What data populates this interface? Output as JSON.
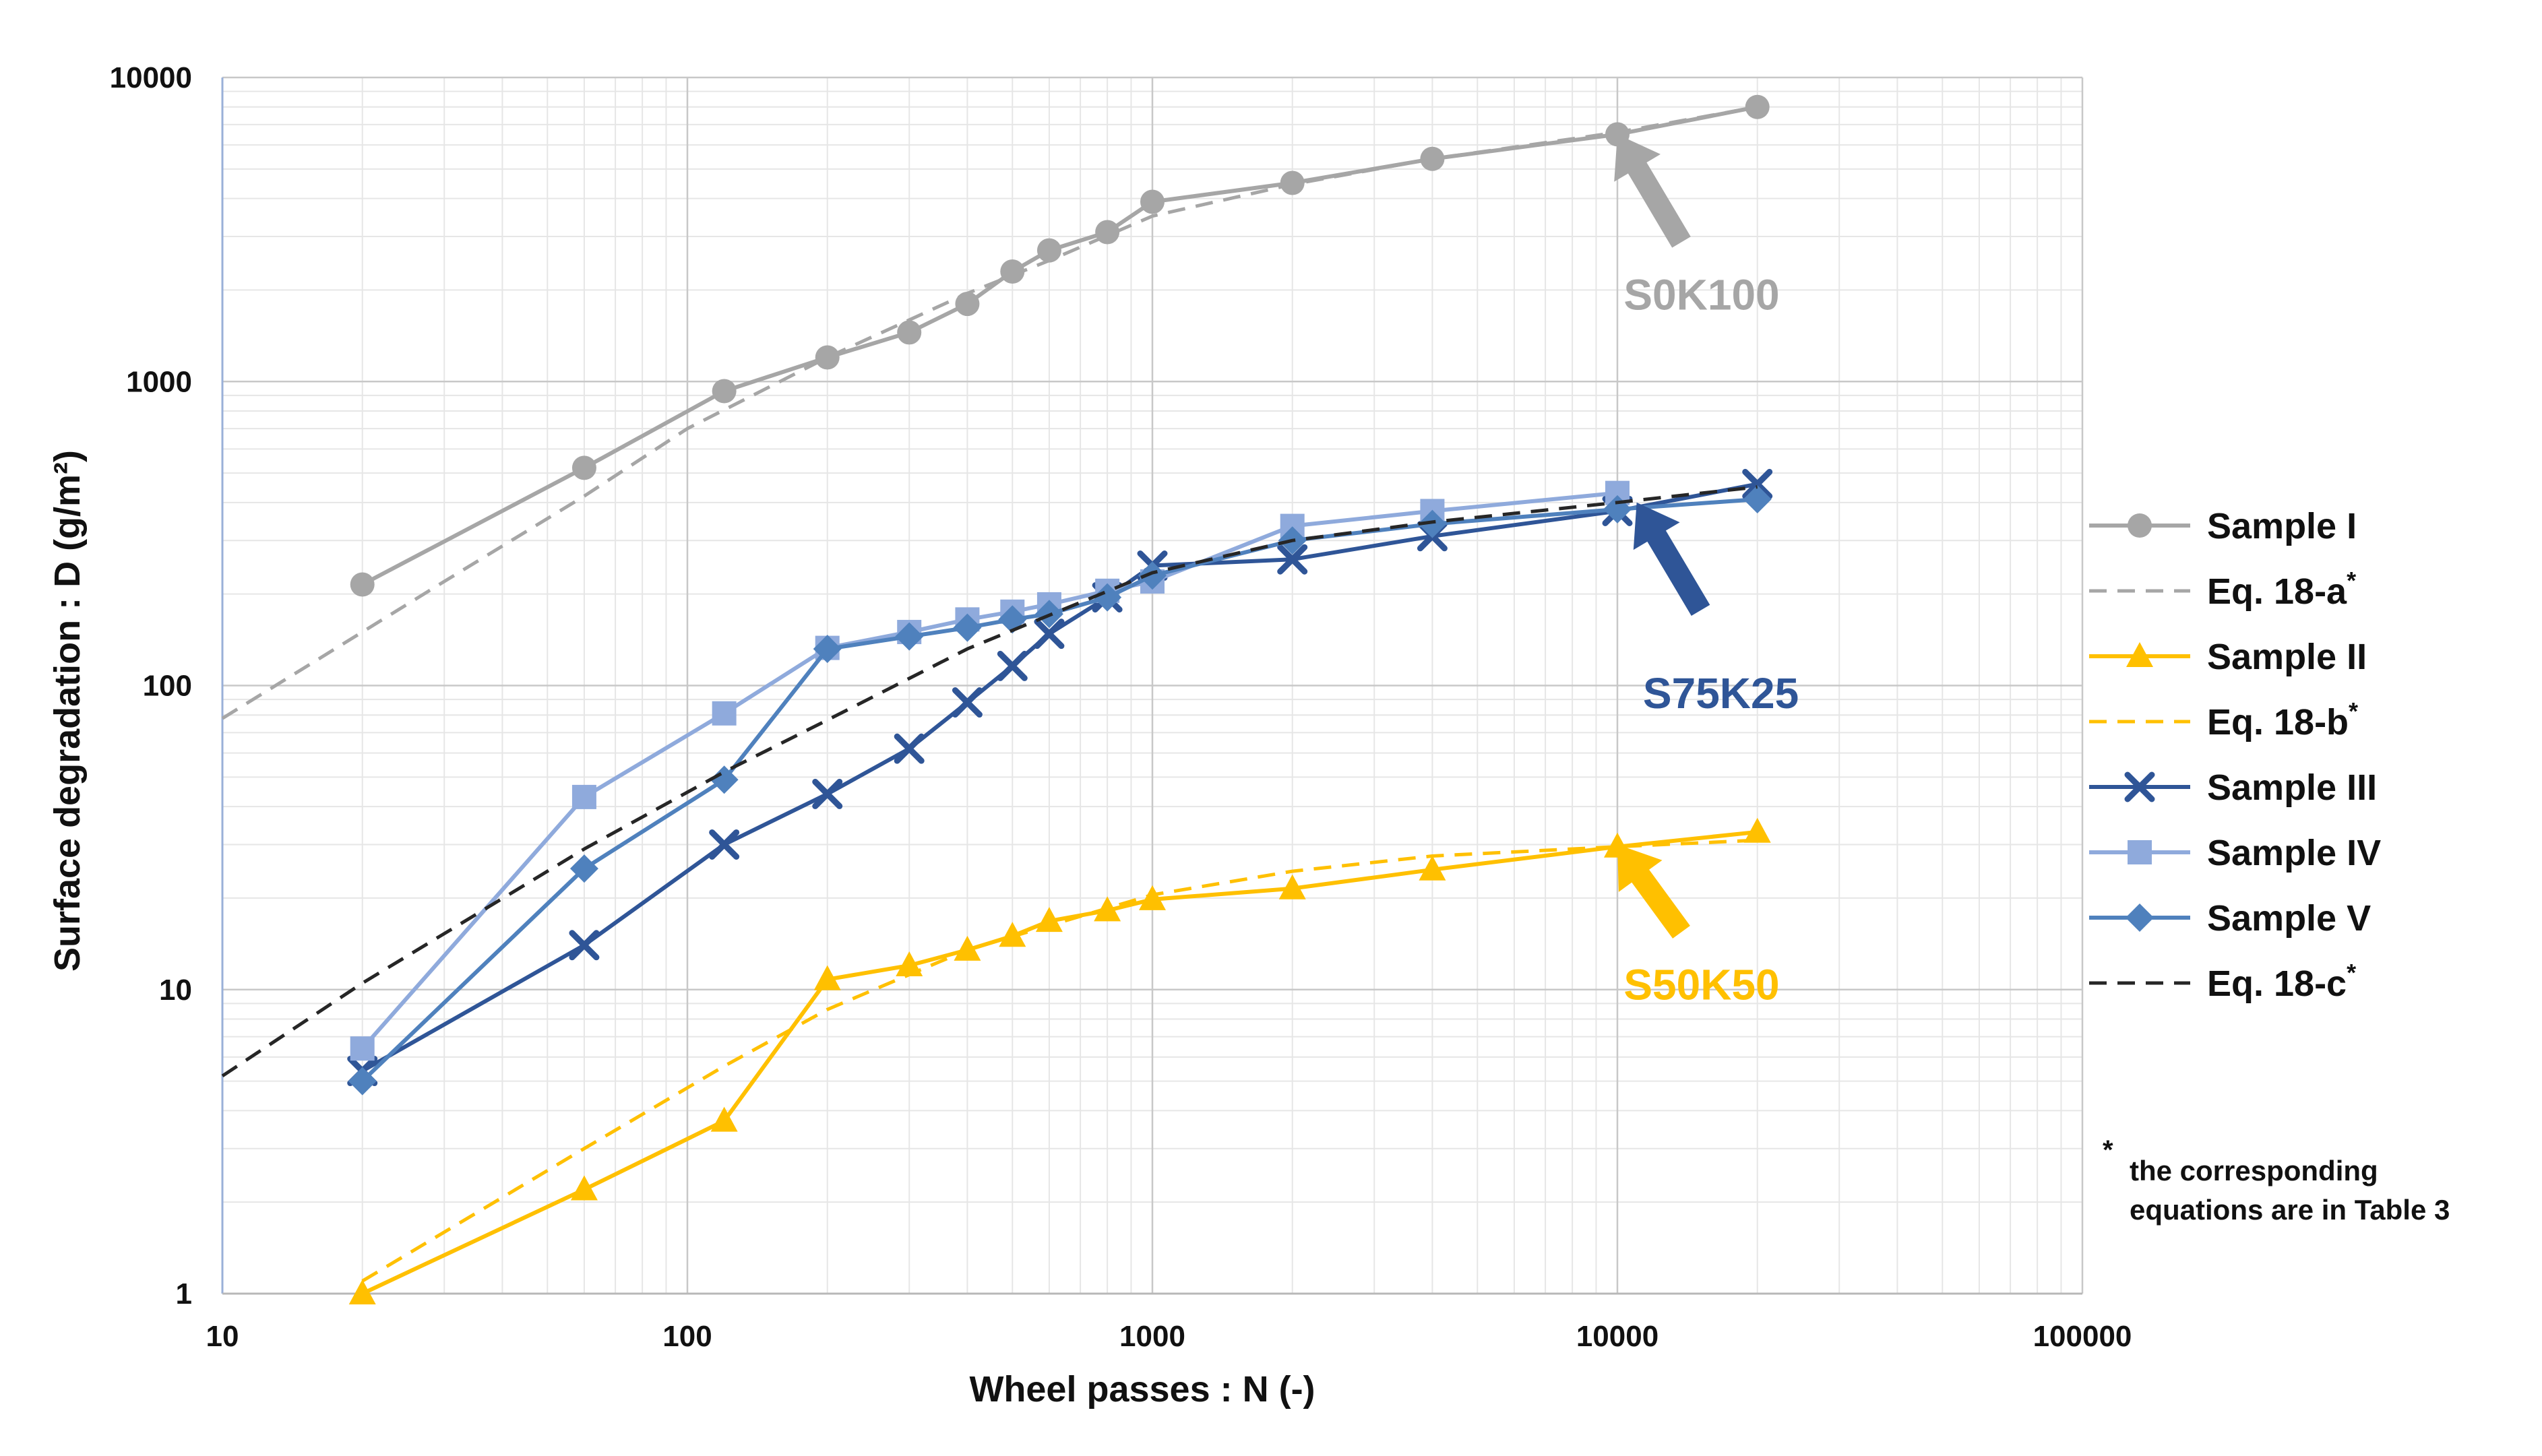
{
  "chart_data": {
    "type": "line",
    "title": "",
    "xlabel": "Wheel passes : N (-)",
    "ylabel": "Surface degradation : D (g/m²)",
    "xscale": "log",
    "yscale": "log",
    "xlim": [
      10,
      100000
    ],
    "ylim": [
      1,
      10000
    ],
    "xticks": [
      "10",
      "100",
      "1000",
      "10000",
      "100000"
    ],
    "yticks": [
      "1",
      "10",
      "100",
      "1000",
      "10000"
    ],
    "grid": true,
    "legend_position": "right",
    "series": [
      {
        "name": "Sample I",
        "style": "solid",
        "marker": "circle",
        "color": "#a6a6a6",
        "x": [
          20,
          60,
          120,
          200,
          300,
          400,
          500,
          600,
          800,
          1000,
          2000,
          4000,
          10000,
          20000
        ],
        "y": [
          215,
          520,
          930,
          1200,
          1450,
          1800,
          2300,
          2700,
          3100,
          3900,
          4500,
          5400,
          6500,
          8000
        ]
      },
      {
        "name": "Eq. 18-a",
        "sup": "*",
        "style": "dashed",
        "marker": "none",
        "color": "#a6a6a6",
        "x": [
          10,
          30,
          60,
          100,
          200,
          400,
          600,
          1000,
          2000,
          4000,
          10000,
          20000
        ],
        "y": [
          78,
          220,
          420,
          700,
          1200,
          1950,
          2500,
          3500,
          4450,
          5400,
          6600,
          8000
        ]
      },
      {
        "name": "Sample II",
        "style": "solid",
        "marker": "triangle",
        "color": "#ffc000",
        "x": [
          20,
          60,
          120,
          200,
          300,
          400,
          500,
          600,
          800,
          1000,
          2000,
          4000,
          10000,
          20000
        ],
        "y": [
          1.0,
          2.2,
          3.7,
          10.8,
          12,
          13.5,
          15,
          16.8,
          18.2,
          19.8,
          21.5,
          24.8,
          29.5,
          33
        ]
      },
      {
        "name": "Eq. 18-b",
        "sup": "*",
        "style": "dashed",
        "marker": "none",
        "color": "#ffc000",
        "x": [
          20,
          60,
          120,
          200,
          400,
          1000,
          2000,
          4000,
          10000,
          20000
        ],
        "y": [
          1.1,
          3.0,
          5.6,
          8.6,
          13.5,
          20.5,
          24.5,
          27.5,
          29.5,
          31
        ]
      },
      {
        "name": "Sample III",
        "style": "solid",
        "marker": "x",
        "color": "#2f5597",
        "x": [
          20,
          60,
          120,
          200,
          300,
          400,
          500,
          600,
          800,
          1000,
          2000,
          4000,
          10000,
          20000
        ],
        "y": [
          5.4,
          14,
          30,
          44,
          62,
          88,
          116,
          148,
          195,
          248,
          260,
          310,
          375,
          460
        ]
      },
      {
        "name": "Sample IV",
        "style": "solid",
        "marker": "square",
        "color": "#8faadc",
        "x": [
          20,
          60,
          120,
          200,
          300,
          400,
          500,
          600,
          800,
          1000,
          2000,
          4000,
          10000
        ],
        "y": [
          6.4,
          43,
          81,
          133,
          150,
          165,
          175,
          185,
          205,
          220,
          335,
          375,
          430
        ]
      },
      {
        "name": "Sample V",
        "style": "solid",
        "marker": "diamond",
        "color": "#4f81bd",
        "x": [
          20,
          60,
          120,
          200,
          300,
          400,
          500,
          600,
          800,
          1000,
          2000,
          4000,
          10000,
          20000
        ],
        "y": [
          5.0,
          25,
          49,
          132,
          145,
          155,
          165,
          172,
          195,
          230,
          300,
          340,
          380,
          410
        ]
      },
      {
        "name": "Eq. 18-c",
        "sup": "*",
        "style": "dashed",
        "marker": "none",
        "color": "#262626",
        "x": [
          10,
          20,
          60,
          120,
          200,
          400,
          1000,
          2000,
          4000,
          10000,
          20000
        ],
        "y": [
          5.2,
          10.5,
          29,
          52,
          77,
          132,
          235,
          300,
          345,
          400,
          450
        ]
      }
    ],
    "annotations": [
      {
        "text": "S0K100",
        "color": "#a6a6a6",
        "arrow_tip": [
          10000,
          6500
        ]
      },
      {
        "text": "S75K25",
        "color": "#2f5597",
        "arrow_tip": [
          11000,
          400
        ]
      },
      {
        "text": "S50K50",
        "color": "#ffc000",
        "arrow_tip": [
          10000,
          30
        ]
      }
    ],
    "footnote": {
      "star": "*",
      "line1": "the corresponding",
      "line2": "equations are in Table 3"
    }
  }
}
